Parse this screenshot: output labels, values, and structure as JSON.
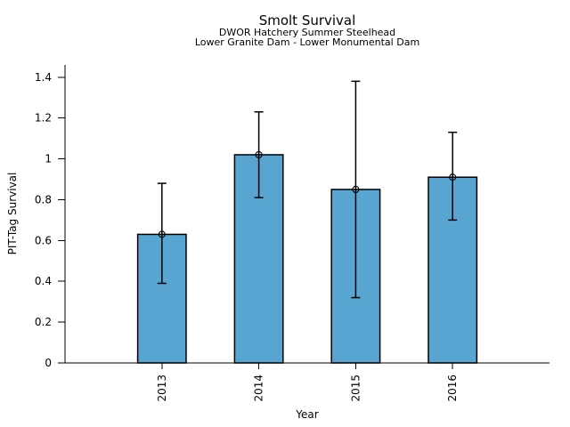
{
  "chart_data": {
    "type": "bar",
    "title": "Smolt Survival",
    "subtitles": [
      "DWOR Hatchery Summer Steelhead",
      "Lower Granite Dam - Lower Monumental Dam"
    ],
    "xlabel": "Year",
    "ylabel": "PIT-Tag Survival",
    "categories": [
      "2013",
      "2014",
      "2015",
      "2016"
    ],
    "series": [
      {
        "name": "PIT-Tag Survival",
        "values": [
          0.63,
          1.02,
          0.85,
          0.91
        ],
        "error_low": [
          0.39,
          0.81,
          0.32,
          0.7
        ],
        "error_high": [
          0.88,
          1.23,
          1.38,
          1.13
        ]
      }
    ],
    "ylim": [
      0,
      1.46
    ],
    "yticks": [
      0,
      0.2,
      0.4,
      0.6,
      0.8,
      1,
      1.2,
      1.4
    ],
    "x_tick_rotation": 90,
    "grid": false,
    "legend": "none",
    "bar_fill_color": "#58A5D2",
    "bar_edge_color": "#000000",
    "error_bar_color": "#000000",
    "marker": "open-circle"
  }
}
